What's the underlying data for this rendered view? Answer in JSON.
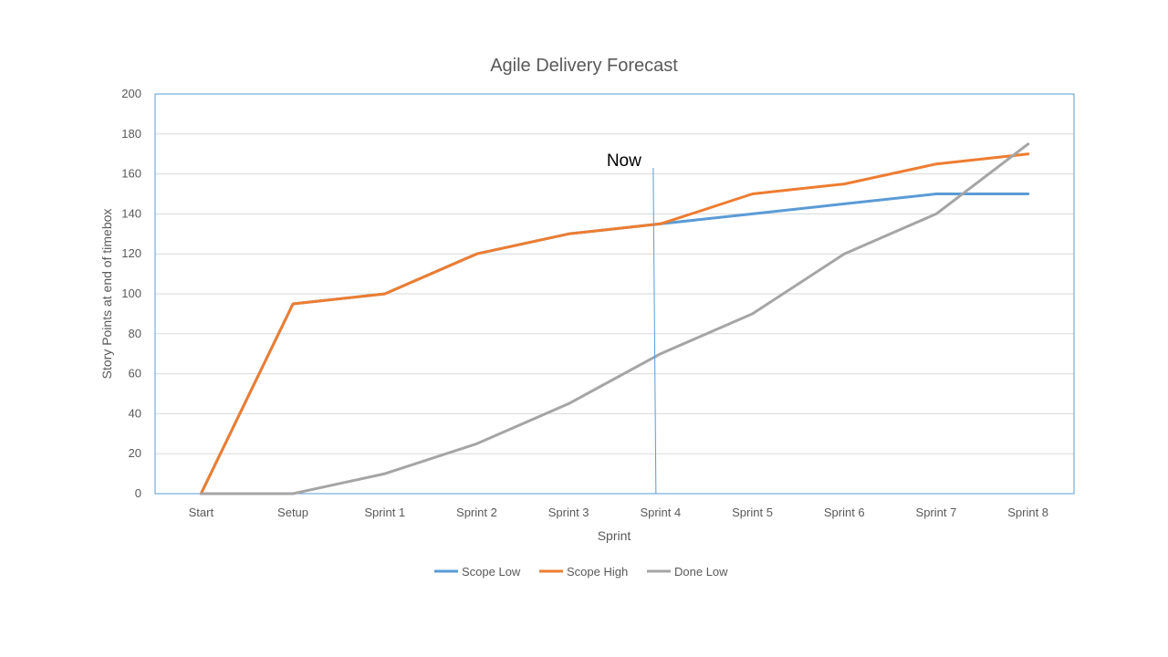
{
  "chart_data": {
    "type": "line",
    "title": "Agile Delivery Forecast",
    "xlabel": "Sprint",
    "ylabel": "Story Points at end of timebox",
    "categories": [
      "Start",
      "Setup",
      "Sprint 1",
      "Sprint 2",
      "Sprint 3",
      "Sprint 4",
      "Sprint 5",
      "Sprint 6",
      "Sprint 7",
      "Sprint 8"
    ],
    "ylim": [
      0,
      200
    ],
    "yticks": [
      0,
      20,
      40,
      60,
      80,
      100,
      120,
      140,
      160,
      180,
      200
    ],
    "grid": true,
    "legend_position": "bottom",
    "series": [
      {
        "name": "Scope Low",
        "color": "#5B9BD5",
        "values": [
          0,
          95,
          100,
          120,
          130,
          135,
          140,
          145,
          150,
          150
        ]
      },
      {
        "name": "Scope High",
        "color": "#ED7D31",
        "values": [
          0,
          95,
          100,
          120,
          130,
          135,
          150,
          155,
          165,
          170
        ]
      },
      {
        "name": "Done Low",
        "color": "#A5A5A5",
        "values": [
          0,
          0,
          10,
          25,
          45,
          70,
          90,
          120,
          140,
          175
        ]
      }
    ],
    "annotation": {
      "text": "Now",
      "category": "Sprint 4",
      "color": "#5B9BD5"
    }
  }
}
